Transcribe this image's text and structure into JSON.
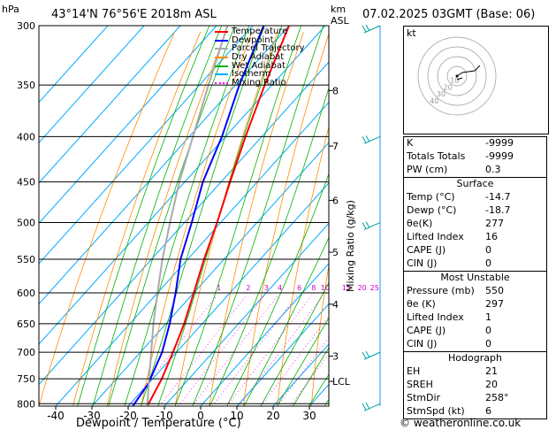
{
  "header": {
    "pressure_unit": "hPa",
    "location": "43°14'N  76°56'E  2018m  ASL",
    "height_unit_km": "km",
    "height_unit_asl": "ASL",
    "valid_time": "07.02.2025  03GMT  (Base: 06)"
  },
  "chart_data": {
    "type": "line",
    "xlabel": "Dewpoint / Temperature (°C)",
    "ylabel": "Mixing Ratio (g/kg)",
    "xlim": [
      -45,
      35
    ],
    "ylim_hpa": [
      805,
      300
    ],
    "pressure_ticks": [
      300,
      350,
      400,
      450,
      500,
      550,
      600,
      650,
      700,
      750,
      800
    ],
    "temp_ticks": [
      -40,
      -30,
      -20,
      -10,
      0,
      10,
      20,
      30
    ],
    "height_ticks": [
      {
        "label": "8",
        "p": 355
      },
      {
        "label": "7",
        "p": 410
      },
      {
        "label": "6",
        "p": 472
      },
      {
        "label": "5",
        "p": 540
      },
      {
        "label": "4",
        "p": 618
      },
      {
        "label": "3",
        "p": 707
      },
      {
        "label": "LCL",
        "p": 755
      }
    ],
    "mixing_ratio_labels": [
      "1",
      "2",
      "3",
      "4",
      "6",
      "8",
      "10",
      "15",
      "20",
      "25"
    ],
    "mixing_ratio_values": [
      1,
      2,
      3,
      4,
      6,
      8,
      10,
      15,
      20,
      25
    ],
    "legend": [
      {
        "name": "Temperature",
        "color": "#ff0000",
        "style": "solid"
      },
      {
        "name": "Dewpoint",
        "color": "#0000ff",
        "style": "solid"
      },
      {
        "name": "Parcel Trajectory",
        "color": "#aaaaaa",
        "style": "solid"
      },
      {
        "name": "Dry Adiabat",
        "color": "#ff8c00",
        "style": "solid"
      },
      {
        "name": "Wet Adiabat",
        "color": "#00b000",
        "style": "solid"
      },
      {
        "name": "Isotherm",
        "color": "#00aaff",
        "style": "solid"
      },
      {
        "name": "Mixing Ratio",
        "color": "#ff00ff",
        "style": "dotted"
      }
    ],
    "series": [
      {
        "name": "Temperature",
        "color": "#ff0000",
        "points": [
          [
            805,
            -14.7
          ],
          [
            750,
            -17.5
          ],
          [
            700,
            -21
          ],
          [
            650,
            -25
          ],
          [
            600,
            -30
          ],
          [
            550,
            -35.5
          ],
          [
            500,
            -41
          ],
          [
            450,
            -47.5
          ],
          [
            400,
            -54.5
          ],
          [
            350,
            -62
          ],
          [
            300,
            -70
          ]
        ]
      },
      {
        "name": "Dewpoint",
        "color": "#0000ff",
        "points": [
          [
            805,
            -18.7
          ],
          [
            760,
            -20
          ],
          [
            700,
            -24
          ],
          [
            650,
            -29
          ],
          [
            600,
            -35
          ],
          [
            550,
            -42
          ],
          [
            500,
            -48
          ],
          [
            450,
            -55
          ],
          [
            400,
            -61
          ],
          [
            350,
            -69
          ],
          [
            300,
            -77
          ]
        ]
      },
      {
        "name": "Parcel Trajectory",
        "color": "#aaaaaa",
        "points": [
          [
            805,
            -14.7
          ],
          [
            750,
            -21
          ],
          [
            700,
            -27
          ],
          [
            650,
            -33.5
          ],
          [
            600,
            -40
          ],
          [
            550,
            -47
          ],
          [
            500,
            -54
          ],
          [
            450,
            -61.5
          ],
          [
            400,
            -69
          ],
          [
            350,
            -77.5
          ],
          [
            300,
            -87
          ]
        ]
      }
    ]
  },
  "wind_barbs_color": "#00a0a0",
  "hodograph": {
    "unit": "kt",
    "ring_labels": [
      "40",
      "30",
      "20",
      "10"
    ]
  },
  "indices": [
    {
      "k": "K",
      "v": "-9999"
    },
    {
      "k": "Totals Totals",
      "v": "-9999"
    },
    {
      "k": "PW (cm)",
      "v": "0.3"
    }
  ],
  "surface": {
    "title": "Surface",
    "rows": [
      {
        "k": "Temp (°C)",
        "v": "-14.7"
      },
      {
        "k": "Dewp (°C)",
        "v": "-18.7"
      },
      {
        "k": "θe(K)",
        "v": "277"
      },
      {
        "k": "Lifted Index",
        "v": "16"
      },
      {
        "k": "CAPE (J)",
        "v": "0"
      },
      {
        "k": "CIN (J)",
        "v": "0"
      }
    ]
  },
  "most_unstable": {
    "title": "Most Unstable",
    "rows": [
      {
        "k": "Pressure (mb)",
        "v": "550"
      },
      {
        "k": "θe (K)",
        "v": "297"
      },
      {
        "k": "Lifted Index",
        "v": "1"
      },
      {
        "k": "CAPE (J)",
        "v": "0"
      },
      {
        "k": "CIN (J)",
        "v": "0"
      }
    ]
  },
  "hodo_table": {
    "title": "Hodograph",
    "rows": [
      {
        "k": "EH",
        "v": "21"
      },
      {
        "k": "SREH",
        "v": "20"
      },
      {
        "k": "StmDir",
        "v": "258°"
      },
      {
        "k": "StmSpd (kt)",
        "v": "6"
      }
    ]
  },
  "footer": {
    "copyright": "© weatheronline.co.uk"
  }
}
